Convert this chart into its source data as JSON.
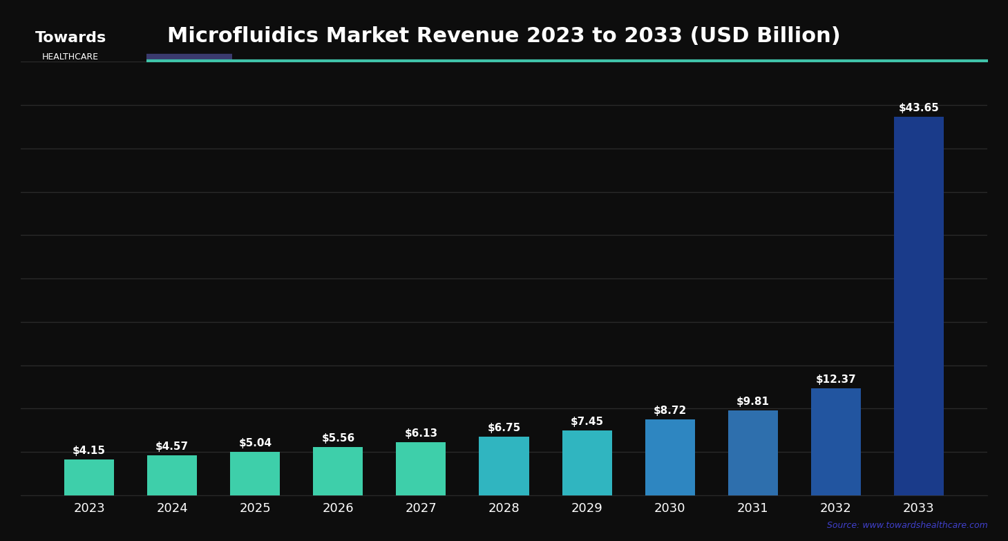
{
  "title": "Microfluidics Market Revenue 2023 to 2033 (USD Billion)",
  "subtitle_line_color": "#40c4aa",
  "subtitle_line_dark": "#3a3a6e",
  "years": [
    "2023",
    "2024",
    "2025",
    "2026",
    "2027",
    "2028",
    "2029",
    "2030",
    "2031",
    "2032",
    "2033"
  ],
  "values": [
    4.15,
    4.57,
    5.04,
    5.56,
    6.13,
    6.75,
    7.45,
    8.72,
    9.81,
    12.37,
    43.65
  ],
  "bar_labels": [
    "$4.15",
    "$4.57",
    "$5.04",
    "$5.56",
    "$6.13",
    "$6.75",
    "$7.45",
    "$8.72",
    "$9.81",
    "$12.37",
    "$43.65"
  ],
  "bar_colors": [
    "#3ecfaa",
    "#3ecfaa",
    "#3ecfaa",
    "#3ecfaa",
    "#3ecfaa",
    "#30b5c0",
    "#30b5c0",
    "#2e86c1",
    "#2e6fad",
    "#2255a0",
    "#1a3b8a"
  ],
  "background_color": "#0d0d0d",
  "text_color": "#ffffff",
  "grid_color": "#2a2a2a",
  "ylim": [
    0,
    50
  ],
  "yticks": [
    0,
    5,
    10,
    15,
    20,
    25,
    30,
    35,
    40,
    45,
    50
  ],
  "source_text": "Source: www.towardshealthcare.com",
  "source_color": "#4040cc",
  "logo_text": "Towards",
  "logo_subtext": "HEALTHCARE",
  "title_fontsize": 22,
  "label_fontsize": 11,
  "tick_fontsize": 13
}
